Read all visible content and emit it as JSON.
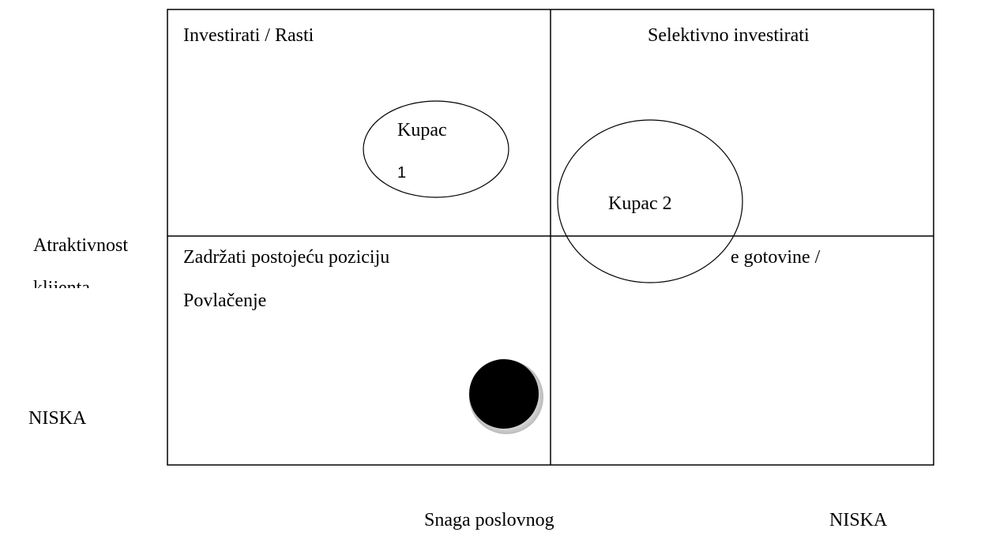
{
  "quadrants": {
    "top_left": "Investirati / Rasti",
    "top_right": "Selektivno investirati",
    "bottom_left": [
      "Zadržati postojeću poziciju",
      "Povlačenje"
    ],
    "bottom_right": "e gotovine /"
  },
  "bubbles": {
    "kupac_1": [
      "Kupac",
      "1"
    ],
    "kupac_2": "Kupac 2"
  },
  "y_axis": {
    "label": [
      "Atraktivnost",
      "klijenta"
    ],
    "low": "NISKA"
  },
  "x_axis": {
    "label": "Snaga poslovnog",
    "low": "NISKA"
  }
}
